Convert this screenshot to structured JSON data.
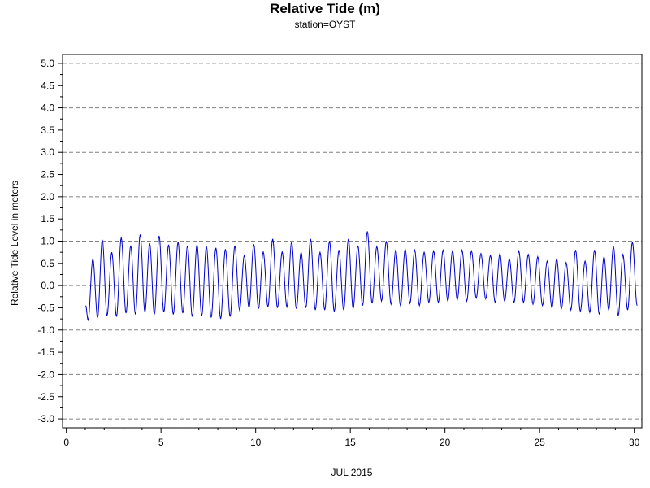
{
  "chart_data": {
    "type": "line",
    "title": "Relative Tide (m)",
    "subtitle": "station=OYST",
    "xlabel": "JUL 2015",
    "ylabel": "Relative Tide Level in meters",
    "xlim": [
      -0.2,
      30.4
    ],
    "ylim": [
      -3.2,
      5.2
    ],
    "xticks": [
      0,
      5,
      10,
      15,
      20,
      25,
      30
    ],
    "xtick_labels": [
      "0",
      "5",
      "10",
      "15",
      "20",
      "25",
      "30"
    ],
    "yticks": [
      5.0,
      4.5,
      4.0,
      3.5,
      3.0,
      2.5,
      2.0,
      1.5,
      1.0,
      0.5,
      0.0,
      -0.5,
      -1.0,
      -1.5,
      -2.0,
      -2.5,
      -3.0
    ],
    "ytick_labels": [
      "5.0",
      "4.5",
      "4.0",
      "3.5",
      "3.0",
      "2.5",
      "2.0",
      "1.5",
      "1.0",
      "0.5",
      "0.0",
      "-0.5",
      "-1.0",
      "-1.5",
      "-2.0",
      "-2.5",
      "-3.0"
    ],
    "gridlines_y": [
      5.0,
      4.0,
      3.0,
      2.0,
      1.0,
      0.0,
      -1.0,
      -2.0,
      -3.0
    ],
    "grid": "dashed horizontal at whole meters",
    "line_color": "#0000cc",
    "series": [
      {
        "x": [
          1.02,
          1.15,
          1.4,
          1.65,
          1.9,
          2.15,
          2.4,
          2.65,
          2.9,
          3.15,
          3.4,
          3.65,
          3.9,
          4.15,
          4.4,
          4.65,
          4.9,
          5.15,
          5.4,
          5.65,
          5.9,
          6.15,
          6.4,
          6.65,
          6.9,
          7.15,
          7.4,
          7.65,
          7.9,
          8.15,
          8.4,
          8.65,
          8.9,
          9.15,
          9.4,
          9.65,
          9.9,
          10.15,
          10.4,
          10.65,
          10.9,
          11.15,
          11.4,
          11.65,
          11.9,
          12.15,
          12.4,
          12.65,
          12.9,
          13.15,
          13.4,
          13.65,
          13.9,
          14.15,
          14.4,
          14.65,
          14.9,
          15.15,
          15.4,
          15.65,
          15.9,
          16.15,
          16.4,
          16.65,
          16.9,
          17.15,
          17.4,
          17.65,
          17.9,
          18.15,
          18.4,
          18.65,
          18.9,
          19.15,
          19.4,
          19.65,
          19.9,
          20.15,
          20.4,
          20.65,
          20.9,
          21.15,
          21.4,
          21.65,
          21.9,
          22.15,
          22.4,
          22.65,
          22.9,
          23.15,
          23.4,
          23.65,
          23.9,
          24.15,
          24.4,
          24.65,
          24.9,
          25.15,
          25.4,
          25.65,
          25.9,
          26.15,
          26.4,
          26.65,
          26.9,
          27.15,
          27.4,
          27.65,
          27.9,
          28.15,
          28.4,
          28.65,
          28.9,
          29.15,
          29.4,
          29.65,
          29.9,
          30.15
        ],
        "values": [
          -0.45,
          -0.78,
          0.6,
          -0.72,
          1.03,
          -0.68,
          0.75,
          -0.7,
          1.08,
          -0.62,
          0.9,
          -0.65,
          1.15,
          -0.6,
          0.95,
          -0.65,
          1.12,
          -0.6,
          0.92,
          -0.65,
          0.98,
          -0.62,
          0.9,
          -0.7,
          0.92,
          -0.68,
          0.88,
          -0.72,
          0.85,
          -0.75,
          0.82,
          -0.7,
          0.9,
          -0.55,
          0.68,
          -0.5,
          0.93,
          -0.52,
          0.76,
          -0.48,
          1.05,
          -0.5,
          0.76,
          -0.48,
          0.98,
          -0.52,
          0.75,
          -0.5,
          1.05,
          -0.55,
          0.75,
          -0.55,
          1.0,
          -0.58,
          0.8,
          -0.55,
          1.05,
          -0.52,
          0.9,
          -0.45,
          1.22,
          -0.4,
          0.88,
          -0.35,
          1.0,
          -0.42,
          0.8,
          -0.45,
          0.82,
          -0.4,
          0.8,
          -0.45,
          0.75,
          -0.38,
          0.78,
          -0.38,
          0.8,
          -0.35,
          0.78,
          -0.32,
          0.8,
          -0.35,
          0.78,
          -0.28,
          0.72,
          -0.3,
          0.68,
          -0.38,
          0.72,
          -0.35,
          0.6,
          -0.38,
          0.78,
          -0.38,
          0.7,
          -0.42,
          0.65,
          -0.45,
          0.55,
          -0.5,
          0.6,
          -0.52,
          0.52,
          -0.55,
          0.8,
          -0.58,
          0.55,
          -0.6,
          0.8,
          -0.65,
          0.65,
          -0.55,
          0.88,
          -0.68,
          0.7,
          -0.55,
          0.98,
          -0.45
        ]
      }
    ]
  }
}
